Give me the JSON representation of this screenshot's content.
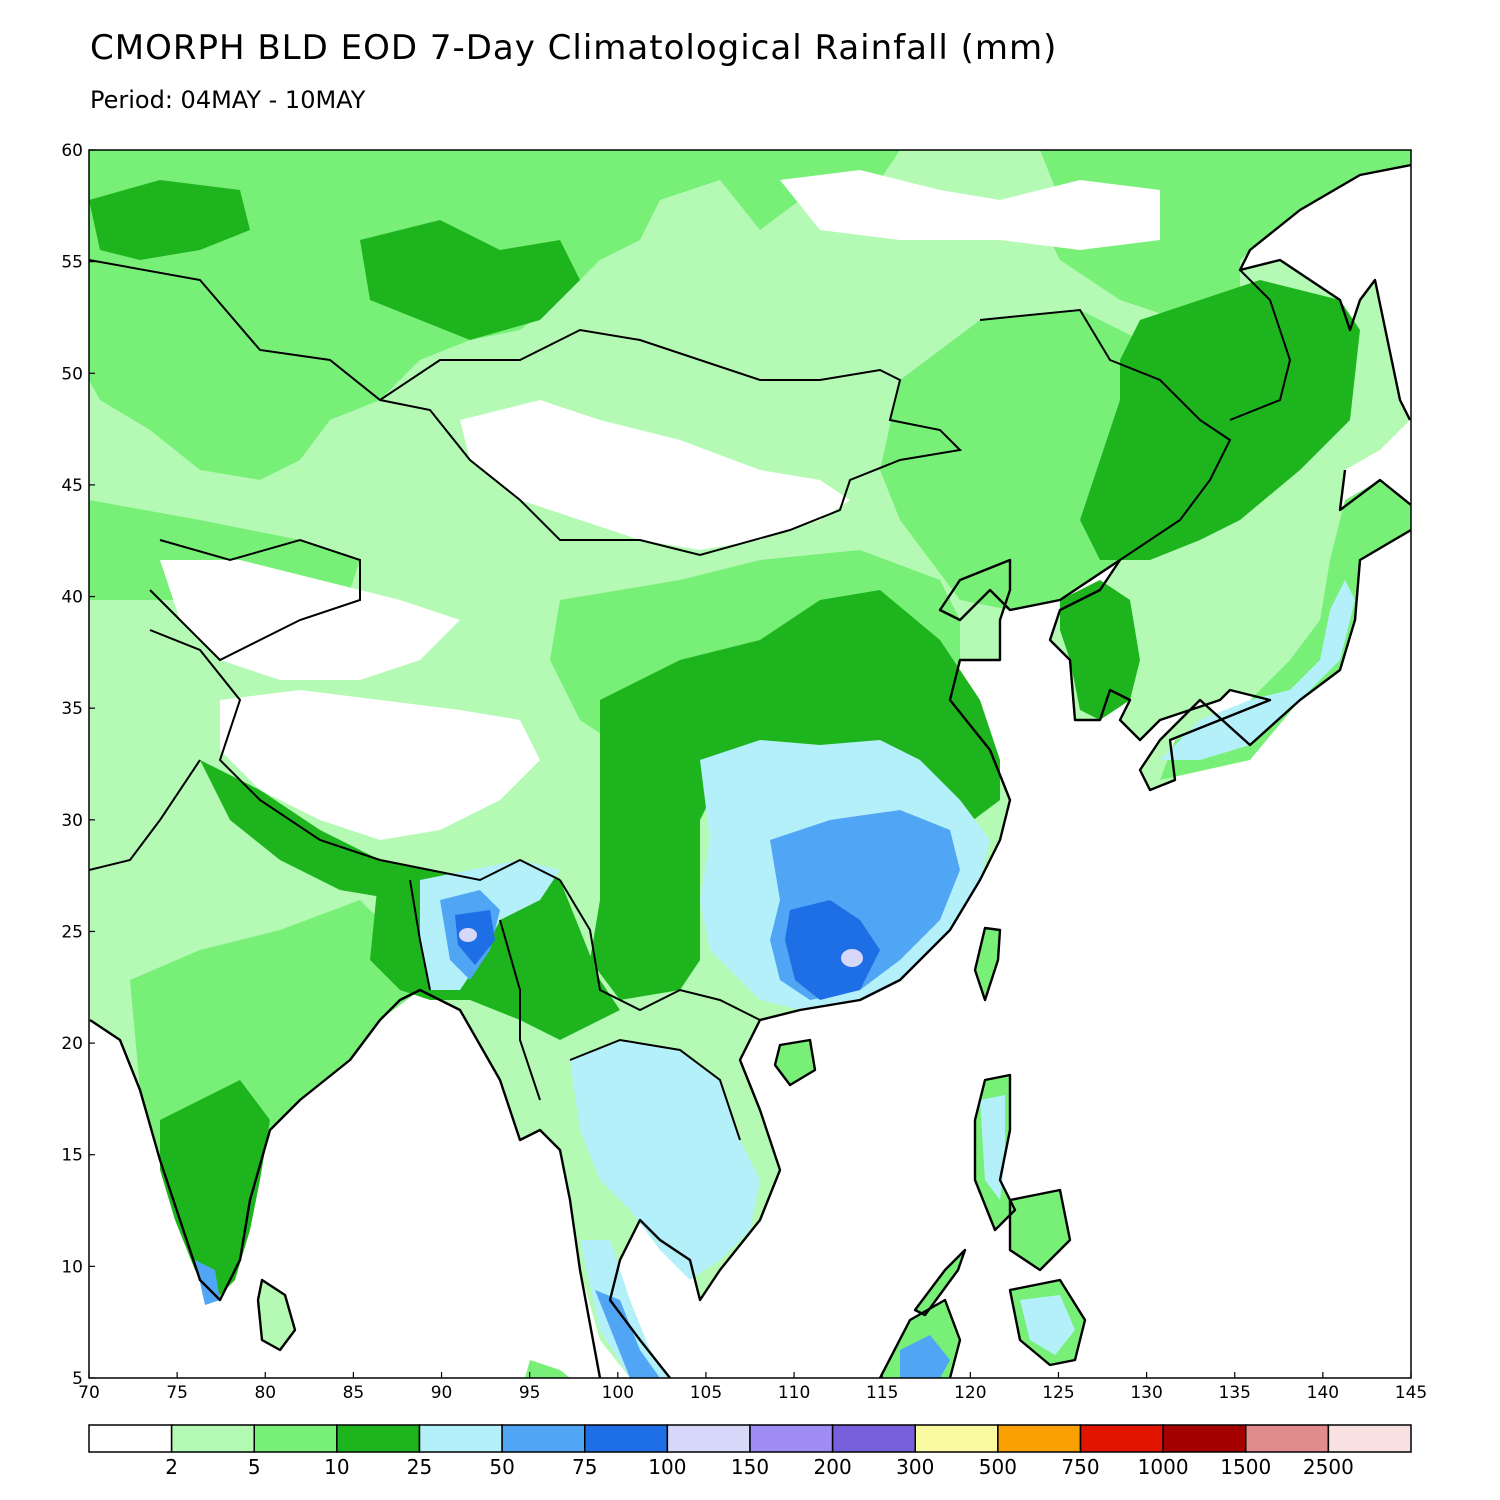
{
  "header": {
    "title": "CMORPH BLD EOD 7-Day Climatological Rainfall (mm)",
    "period": "Period: 04MAY - 10MAY"
  },
  "map": {
    "lon_range": [
      70,
      145
    ],
    "lat_range": [
      5,
      60
    ],
    "lon_ticks": [
      "70",
      "75",
      "80",
      "85",
      "90",
      "95",
      "100",
      "105",
      "110",
      "115",
      "120",
      "125",
      "130",
      "135",
      "140",
      "145"
    ],
    "lat_ticks": [
      "60",
      "55",
      "50",
      "45",
      "40",
      "35",
      "30",
      "25",
      "20",
      "15",
      "10",
      "5"
    ],
    "ocean_color": "#ffffff"
  },
  "colorbar": {
    "colors": [
      "#ffffff",
      "#b4fab4",
      "#78f078",
      "#1eb41e",
      "#b4f0fa",
      "#50a5f5",
      "#1e6ee6",
      "#d7d7fa",
      "#a08cf5",
      "#7860dc",
      "#fafaa0",
      "#faa000",
      "#e11400",
      "#a50000",
      "#e18c8c",
      "#fae1e1"
    ],
    "labels": [
      "2",
      "5",
      "10",
      "25",
      "50",
      "75",
      "100",
      "150",
      "200",
      "300",
      "500",
      "750",
      "1000",
      "1500",
      "2500"
    ]
  }
}
